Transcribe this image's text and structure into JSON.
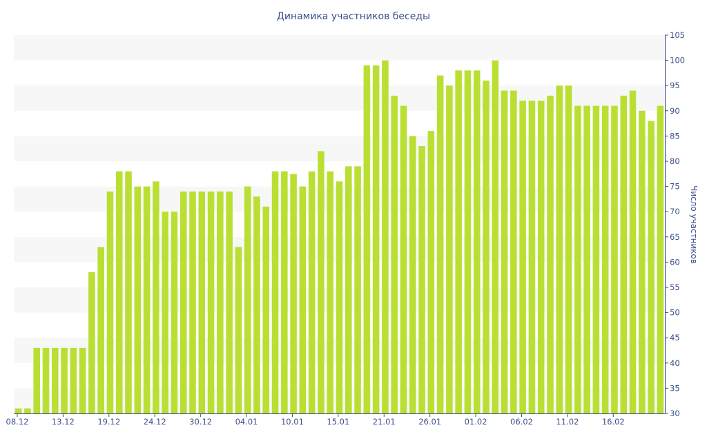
{
  "chart_data": {
    "type": "bar",
    "title": "Динамика участников беседы",
    "xlabel": "",
    "ylabel": "Число участников",
    "ylim": [
      30,
      105
    ],
    "yticks": [
      30,
      35,
      40,
      45,
      50,
      55,
      60,
      65,
      70,
      75,
      80,
      85,
      90,
      95,
      100,
      105
    ],
    "y_axis_position": "right",
    "grid": "alternating horizontal bands",
    "xtick_labels": [
      "08.12",
      "13.12",
      "19.12",
      "24.12",
      "30.12",
      "04.01",
      "10.01",
      "15.01",
      "21.01",
      "26.01",
      "01.02",
      "06.02",
      "11.02",
      "16.02"
    ],
    "xtick_indices": [
      0,
      5,
      10,
      15,
      20,
      25,
      30,
      35,
      40,
      45,
      50,
      55,
      60,
      65
    ],
    "values": [
      31,
      31,
      43,
      43,
      43,
      43,
      43,
      43,
      58,
      63,
      74,
      78,
      78,
      75,
      75,
      76,
      70,
      70,
      74,
      74,
      74,
      74,
      74,
      74,
      63,
      75,
      73,
      71,
      78,
      78,
      77.5,
      75,
      78,
      82,
      78,
      76,
      79,
      79,
      99,
      99,
      100,
      93,
      91,
      85,
      83,
      86,
      97,
      95,
      98,
      98,
      98,
      96,
      100,
      94,
      94,
      92,
      92,
      92,
      93,
      95,
      95,
      91,
      91,
      91,
      91,
      91,
      93,
      94,
      90,
      88,
      91
    ],
    "bar_color": "#badf33",
    "text_color": "#3d4f8c"
  }
}
